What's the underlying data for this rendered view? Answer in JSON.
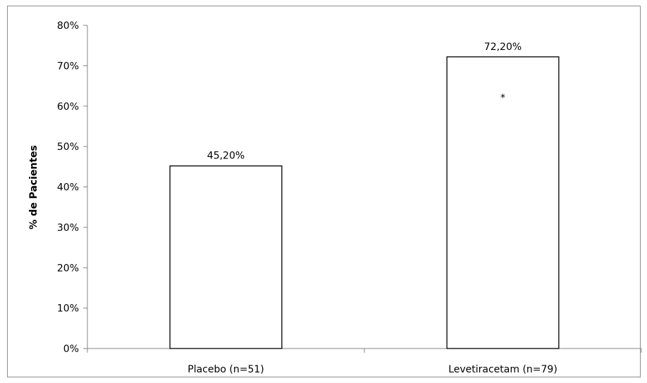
{
  "chart_data": {
    "type": "bar",
    "title": "",
    "xlabel": "",
    "ylabel": "% de Pacientes",
    "categories": [
      "Placebo (n=51)",
      "Levetiracetam (n=79)"
    ],
    "values": [
      45.2,
      72.2
    ],
    "data_labels": [
      "45,20%",
      "72,20%"
    ],
    "ylim": [
      0,
      80
    ],
    "yticks": [
      0,
      10,
      20,
      30,
      40,
      50,
      60,
      70,
      80
    ],
    "ytick_labels": [
      "0%",
      "10%",
      "20%",
      "30%",
      "40%",
      "50%",
      "60%",
      "70%",
      "80%"
    ],
    "annotations": [
      {
        "category": "Levetiracetam (n=79)",
        "text": "*",
        "value": 62
      }
    ],
    "grid": false,
    "legend": "none",
    "colors": {
      "bar_fill": "#ffffff",
      "bar_stroke": "#000000",
      "axis": "#868686",
      "frame": "#8c8c8c"
    }
  }
}
